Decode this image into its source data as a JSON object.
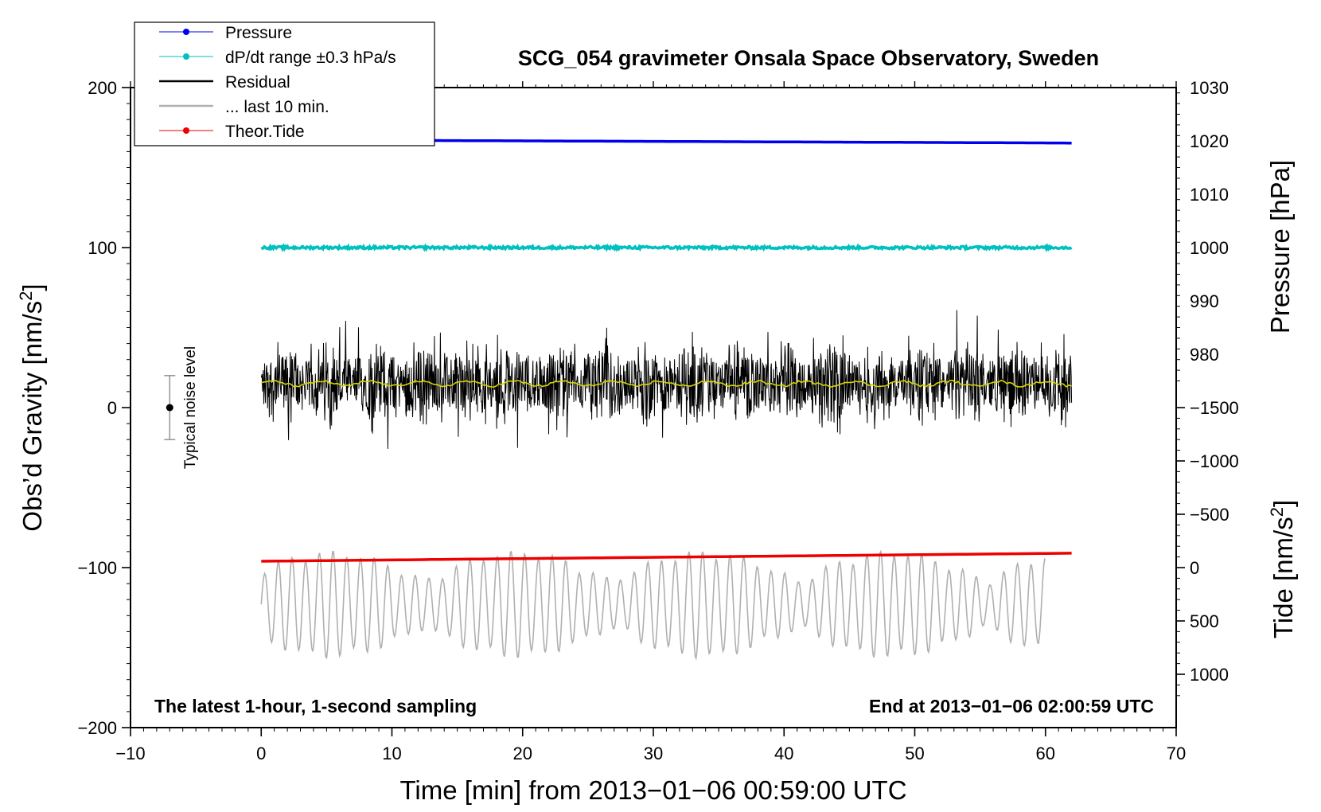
{
  "chart_data": {
    "type": "line",
    "title": "SCG_054 gravimeter Onsala Space Observatory, Sweden",
    "xlabel": "Time [min] from 2013−01−06 00:59:00 UTC",
    "ylabel": "Obs’d Gravity [nm/s²]",
    "ylabel_base": "Obs’d Gravity [nm/s",
    "ylabel_sup": "2",
    "ylabel_end": "]",
    "right_pressure_label": "Pressure [hPa]",
    "right_tide_label_base": "Tide [nm/s",
    "right_tide_sup": "2",
    "right_tide_end": "]",
    "xlim": [
      -10,
      70
    ],
    "ylim": [
      -200,
      200
    ],
    "x_ticks": [
      "−10",
      "0",
      "10",
      "20",
      "30",
      "40",
      "50",
      "60",
      "70"
    ],
    "x_tick_values": [
      -10,
      0,
      10,
      20,
      30,
      40,
      50,
      60,
      70
    ],
    "y_ticks": [
      "200",
      "100",
      "0",
      "−100",
      "−200"
    ],
    "y_tick_values": [
      200,
      100,
      0,
      -100,
      -200
    ],
    "pressure_axis": {
      "ticks": [
        "1030",
        "1020",
        "1010",
        "1000",
        "990",
        "980"
      ],
      "values": [
        1030,
        1020,
        1010,
        1000,
        990,
        980
      ]
    },
    "tide_axis": {
      "ticks": [
        "1000",
        "500",
        "0",
        "−500",
        "−1000",
        "−1500"
      ],
      "values": [
        1000,
        500,
        0,
        -500,
        -1000,
        -1500
      ]
    },
    "annotation_left": "The latest 1-hour, 1-second sampling",
    "annotation_right": "End at 2013−01−06 02:00:59 UTC",
    "noise_label": "Typical noise level",
    "noise_bar": {
      "x": -7,
      "center": 0,
      "low": -20,
      "high": 20
    },
    "legend_placement": "top-left",
    "series": [
      {
        "name": "Pressure",
        "color": "#0000ee",
        "style": "line-dot",
        "x_range": [
          0,
          62
        ],
        "pressure_start": 1020.2,
        "pressure_end": 1019.6
      },
      {
        "name": "dP/dt range ±0.3 hPa/s",
        "color": "#00c0c0",
        "style": "line-dot",
        "x_range": [
          0,
          62
        ],
        "value": 100
      },
      {
        "name": "Residual",
        "color": "#000000",
        "style": "line",
        "x_range": [
          0,
          62
        ],
        "mean": 15,
        "min": -42,
        "max": 63
      },
      {
        "name": "... last 10 min.",
        "color": "#b0b0b0",
        "style": "line",
        "x_range": [
          0,
          60
        ],
        "mean": -123,
        "min": -157,
        "max": -90
      },
      {
        "name": "Theor.Tide",
        "color": "#ee0000",
        "style": "line-dot",
        "x_range": [
          0,
          62
        ],
        "y_start": -96,
        "y_end": -91
      }
    ],
    "residual_mean_color": "#d4d400"
  }
}
